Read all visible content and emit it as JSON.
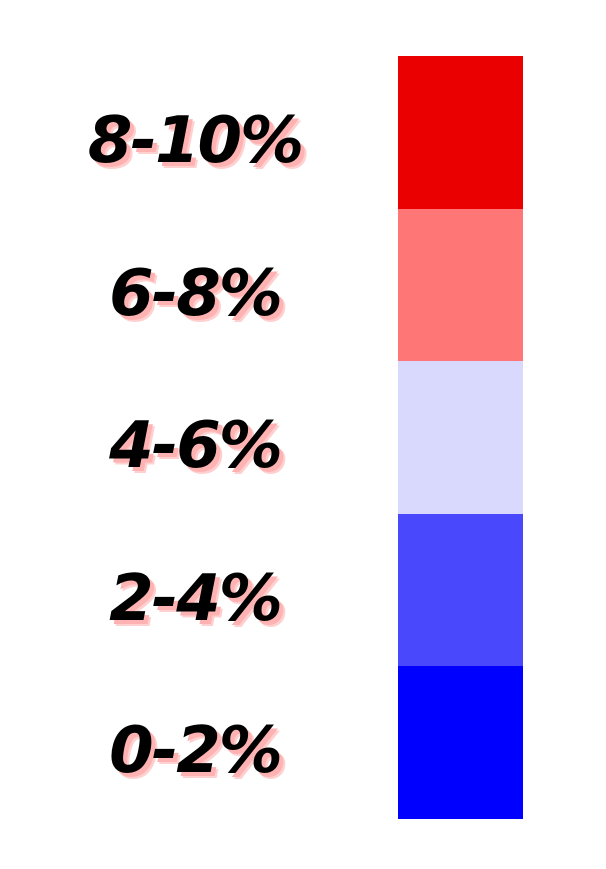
{
  "chart_data": {
    "type": "legend",
    "title": "",
    "entries": [
      {
        "label": "8-10%",
        "color": "#ea0000"
      },
      {
        "label": "6-8%",
        "color": "#fe7676"
      },
      {
        "label": "4-6%",
        "color": "#d9d9fd"
      },
      {
        "label": "2-4%",
        "color": "#4a48fd"
      },
      {
        "label": "0-2%",
        "color": "#0000ff"
      }
    ]
  }
}
